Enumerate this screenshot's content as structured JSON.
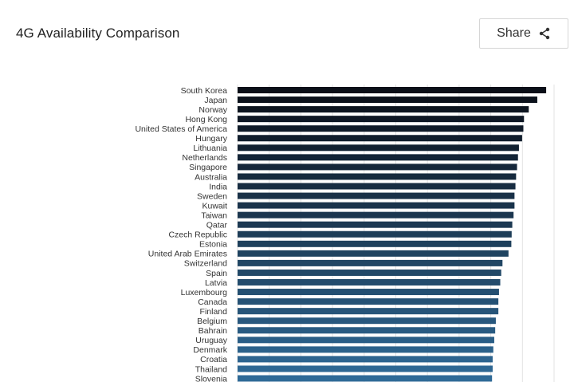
{
  "header": {
    "title": "4G Availability Comparison",
    "share_label": "Share"
  },
  "icons": {
    "share": "share-icon"
  },
  "colors": {
    "bar_start": "#0b0f18",
    "bar_end": "#2f6a97",
    "gridline": "#e3e3e3",
    "title": "#222222"
  },
  "chart_data": {
    "type": "bar",
    "orientation": "horizontal",
    "title": "4G Availability Comparison",
    "xlabel": "",
    "ylabel": "",
    "xlim": [
      0,
      100
    ],
    "grid": true,
    "categories": [
      "South Korea",
      "Japan",
      "Norway",
      "Hong Kong",
      "United States of America",
      "Hungary",
      "Lithuania",
      "Netherlands",
      "Singapore",
      "Australia",
      "India",
      "Sweden",
      "Kuwait",
      "Taiwan",
      "Qatar",
      "Czech Republic",
      "Estonia",
      "United Arab Emirates",
      "Switzerland",
      "Spain",
      "Latvia",
      "Luxembourg",
      "Canada",
      "Finland",
      "Belgium",
      "Bahrain",
      "Uruguay",
      "Denmark",
      "Croatia",
      "Thailand",
      "Slovenia"
    ],
    "values": [
      97.5,
      94.7,
      92.0,
      90.5,
      90.3,
      89.9,
      88.9,
      88.6,
      88.3,
      88.0,
      87.8,
      87.5,
      87.5,
      87.2,
      86.8,
      86.6,
      86.5,
      85.6,
      83.7,
      83.3,
      83.0,
      82.6,
      82.4,
      82.4,
      81.6,
      81.4,
      81.1,
      80.8,
      80.6,
      80.6,
      80.4
    ]
  }
}
